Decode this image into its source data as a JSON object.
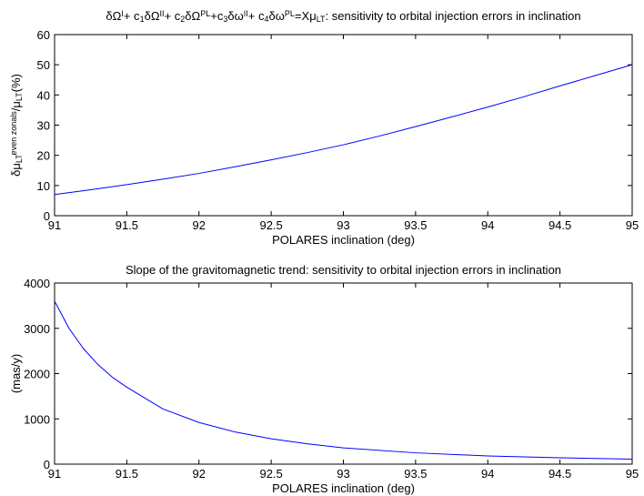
{
  "chart_data": [
    {
      "type": "line",
      "title": [
        {
          "text": "δΩ",
          "shift": "none"
        },
        {
          "text": "I",
          "shift": "sup"
        },
        {
          "text": "+ c",
          "shift": "none"
        },
        {
          "text": "1",
          "shift": "sub"
        },
        {
          "text": "δΩ",
          "shift": "none"
        },
        {
          "text": "II",
          "shift": "sup"
        },
        {
          "text": "+ c",
          "shift": "none"
        },
        {
          "text": "2",
          "shift": "sub"
        },
        {
          "text": "δΩ",
          "shift": "none"
        },
        {
          "text": "PL",
          "shift": "sup"
        },
        {
          "text": "+c",
          "shift": "none"
        },
        {
          "text": "3",
          "shift": "sub"
        },
        {
          "text": "δω",
          "shift": "none"
        },
        {
          "text": "II",
          "shift": "sup"
        },
        {
          "text": "+ c",
          "shift": "none"
        },
        {
          "text": "4",
          "shift": "sub"
        },
        {
          "text": "δω",
          "shift": "none"
        },
        {
          "text": "PL",
          "shift": "sup"
        },
        {
          "text": "=Xμ",
          "shift": "none"
        },
        {
          "text": "LT",
          "shift": "sub"
        },
        {
          "text": ": sensitivity to orbital injection errors in inclination",
          "shift": "none"
        }
      ],
      "x_label": "POLARES inclination (deg)",
      "y_label": [
        {
          "text": "δμ",
          "shift": "none"
        },
        {
          "text": "LT",
          "shift": "sub"
        },
        {
          "text": "even zonals",
          "shift": "sup"
        },
        {
          "text": "/μ",
          "shift": "none"
        },
        {
          "text": "LT",
          "shift": "sub"
        },
        {
          "text": "(%)",
          "shift": "none"
        }
      ],
      "x": [
        91,
        91.25,
        91.5,
        91.75,
        92,
        92.25,
        92.5,
        92.75,
        93,
        93.25,
        93.5,
        93.75,
        94,
        94.25,
        94.5,
        94.75,
        95
      ],
      "series": [
        {
          "name": "sensitivity",
          "color": "#0000ff",
          "values": [
            7,
            8.6,
            10.3,
            12.1,
            14,
            16.2,
            18.5,
            20.9,
            23.5,
            26.4,
            29.5,
            32.7,
            36,
            39.4,
            43,
            46.5,
            50
          ]
        }
      ],
      "xlim": [
        91,
        95
      ],
      "xticks": [
        91,
        91.5,
        92,
        92.5,
        93,
        93.5,
        94,
        94.5,
        95
      ],
      "ylim": [
        0,
        60
      ],
      "yticks": [
        0,
        10,
        20,
        30,
        40,
        50,
        60
      ]
    },
    {
      "type": "line",
      "title": [
        {
          "text": "Slope of the gravitomagnetic trend: sensitivity to orbital injection errors in inclination",
          "shift": "none"
        }
      ],
      "x_label": "POLARES inclination (deg)",
      "y_label": [
        {
          "text": "(mas/y)",
          "shift": "none"
        }
      ],
      "x": [
        91,
        91.1,
        91.2,
        91.3,
        91.4,
        91.5,
        91.75,
        92,
        92.25,
        92.5,
        92.75,
        93,
        93.5,
        94,
        94.5,
        95
      ],
      "series": [
        {
          "name": "slope",
          "color": "#0000ff",
          "values": [
            3600,
            3000,
            2550,
            2200,
            1920,
            1700,
            1220,
            920,
            710,
            560,
            450,
            360,
            250,
            180,
            140,
            110
          ]
        }
      ],
      "xlim": [
        91,
        95
      ],
      "xticks": [
        91,
        91.5,
        92,
        92.5,
        93,
        93.5,
        94,
        94.5,
        95
      ],
      "ylim": [
        0,
        4000
      ],
      "yticks": [
        0,
        1000,
        2000,
        3000,
        4000
      ]
    }
  ]
}
